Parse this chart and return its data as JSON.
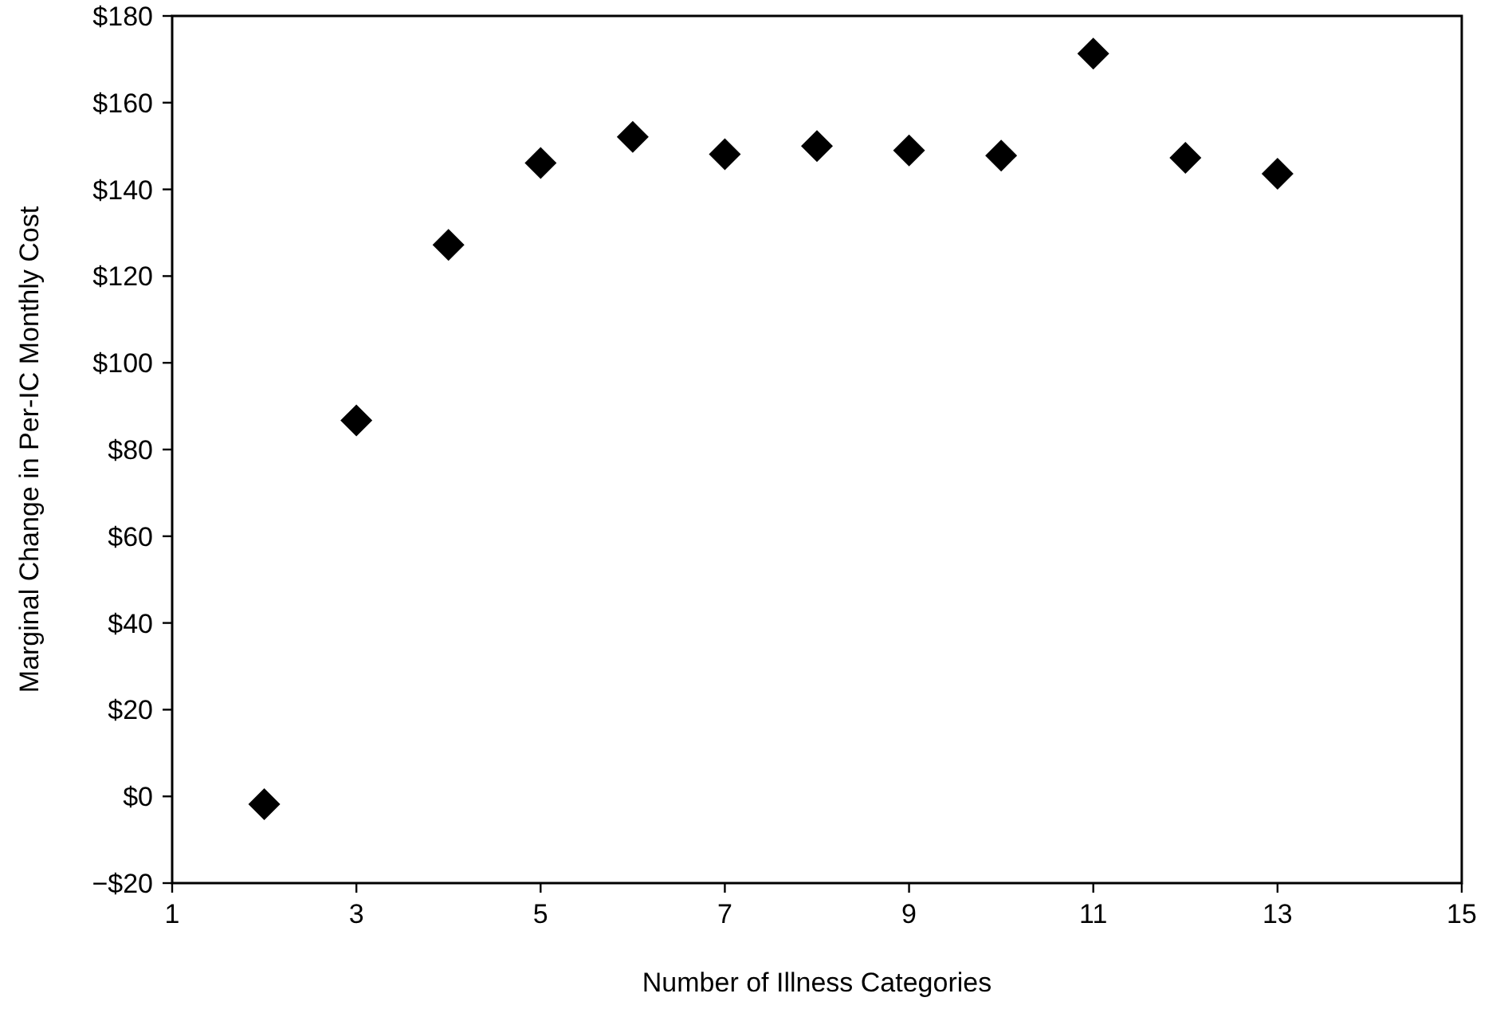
{
  "chart_data": {
    "type": "scatter",
    "xlabel": "Number of Illness Categories",
    "ylabel": "Marginal Change in Per-IC Monthly Cost",
    "marker": "diamond",
    "grid": false,
    "x": [
      2,
      3,
      4,
      5,
      6,
      7,
      8,
      9,
      10,
      11,
      12,
      13
    ],
    "series": [
      {
        "color": "#000000",
        "values": [
          -1.8,
          86.7,
          127.2,
          146.1,
          152.1,
          148.1,
          150,
          149,
          147.8,
          171.3,
          147.3,
          143.6
        ]
      }
    ],
    "xlim": [
      1,
      15
    ],
    "xticks": [
      1,
      3,
      5,
      7,
      9,
      11,
      13,
      15
    ],
    "ylim": [
      -20,
      180
    ],
    "yticks": [
      {
        "value": -20,
        "label": "−$20"
      },
      {
        "value": 0,
        "label": "$0"
      },
      {
        "value": 20,
        "label": "$20"
      },
      {
        "value": 40,
        "label": "$40"
      },
      {
        "value": 60,
        "label": "$60"
      },
      {
        "value": 80,
        "label": "$80"
      },
      {
        "value": 100,
        "label": "$100"
      },
      {
        "value": 120,
        "label": "$120"
      },
      {
        "value": 140,
        "label": "$140"
      },
      {
        "value": 160,
        "label": "$160"
      },
      {
        "value": 180,
        "label": "$180"
      }
    ]
  }
}
